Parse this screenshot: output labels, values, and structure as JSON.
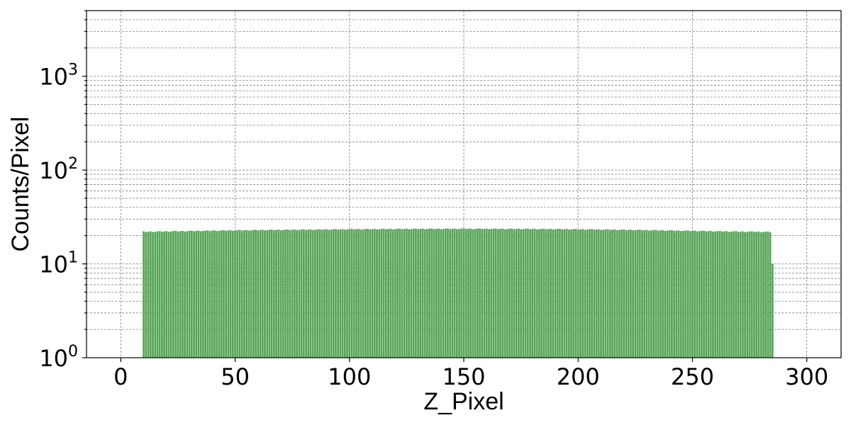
{
  "chart_data": {
    "type": "bar",
    "title": "",
    "xlabel": "Z_Pixel",
    "ylabel": "Counts/Pixel",
    "xlim": [
      -15,
      315
    ],
    "ylim": [
      1,
      5000
    ],
    "yscale": "log",
    "grid": true,
    "x_ticks": [
      0,
      50,
      100,
      150,
      200,
      250,
      300
    ],
    "x_tick_labels": [
      "0",
      "50",
      "100",
      "150",
      "200",
      "250",
      "300"
    ],
    "y_ticks": [
      1,
      10,
      100,
      1000
    ],
    "y_tick_labels": [
      {
        "base": "10",
        "exp": "0"
      },
      {
        "base": "10",
        "exp": "1"
      },
      {
        "base": "10",
        "exp": "2"
      },
      {
        "base": "10",
        "exp": "3"
      }
    ],
    "bar_color": "#56a456",
    "bar_width": 0.85,
    "series": [
      {
        "x_start": 10,
        "x_end": 284,
        "values_profile": [
          [
            10,
            22.0
          ],
          [
            20,
            22.2
          ],
          [
            30,
            22.4
          ],
          [
            50,
            22.8
          ],
          [
            75,
            23.1
          ],
          [
            100,
            23.4
          ],
          [
            125,
            23.6
          ],
          [
            150,
            23.7
          ],
          [
            175,
            23.6
          ],
          [
            200,
            23.4
          ],
          [
            225,
            23.0
          ],
          [
            250,
            22.5
          ],
          [
            270,
            22.1
          ],
          [
            284,
            21.9
          ]
        ],
        "tail": [
          {
            "x": 285,
            "y": 10
          }
        ]
      }
    ]
  }
}
